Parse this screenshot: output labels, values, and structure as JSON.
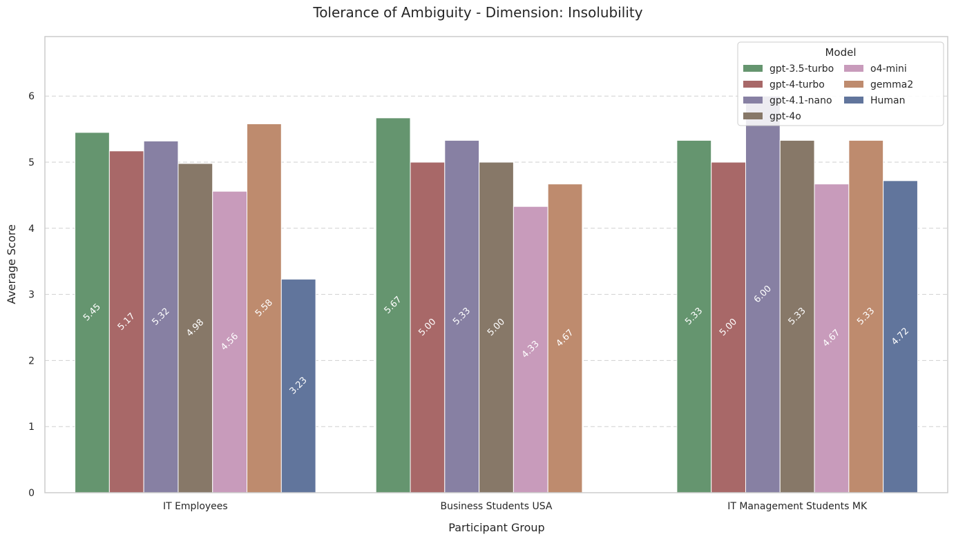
{
  "chart_data": {
    "type": "bar",
    "title": "Tolerance of Ambiguity - Dimension: Insolubility",
    "xlabel": "Participant Group",
    "ylabel": "Average Score",
    "ylim": [
      0,
      6.9
    ],
    "yticks": [
      0,
      1,
      2,
      3,
      4,
      5,
      6
    ],
    "grid": true,
    "categories": [
      "IT Employees",
      "Business Students USA",
      "IT Management Students MK"
    ],
    "legend": {
      "title": "Model",
      "placement": "top-right",
      "columns": 2
    },
    "series": [
      {
        "name": "gpt-3.5-turbo",
        "color": "#65956f",
        "values": [
          5.45,
          5.67,
          5.33
        ],
        "labels": [
          "5.45",
          "5.67",
          "5.33"
        ]
      },
      {
        "name": "gpt-4-turbo",
        "color": "#a86868",
        "values": [
          5.17,
          5.0,
          5.0
        ],
        "labels": [
          "5.17",
          "5.00",
          "5.00"
        ]
      },
      {
        "name": "gpt-4.1-nano",
        "color": "#8780a3",
        "values": [
          5.32,
          5.33,
          6.0
        ],
        "labels": [
          "5.32",
          "5.33",
          "6.00"
        ]
      },
      {
        "name": "gpt-4o",
        "color": "#877868",
        "values": [
          4.98,
          5.0,
          5.33
        ],
        "labels": [
          "4.98",
          "5.00",
          "5.33"
        ]
      },
      {
        "name": "o4-mini",
        "color": "#c89bbb",
        "values": [
          4.56,
          4.33,
          4.67
        ],
        "labels": [
          "4.56",
          "4.33",
          "4.67"
        ]
      },
      {
        "name": "gemma2",
        "color": "#be8b6e",
        "values": [
          5.58,
          4.67,
          5.33
        ],
        "labels": [
          "5.58",
          "4.67",
          "5.33"
        ]
      },
      {
        "name": "Human",
        "color": "#61759c",
        "values": [
          3.23,
          null,
          4.72
        ],
        "labels": [
          "3.23",
          "",
          "4.72"
        ]
      }
    ]
  }
}
